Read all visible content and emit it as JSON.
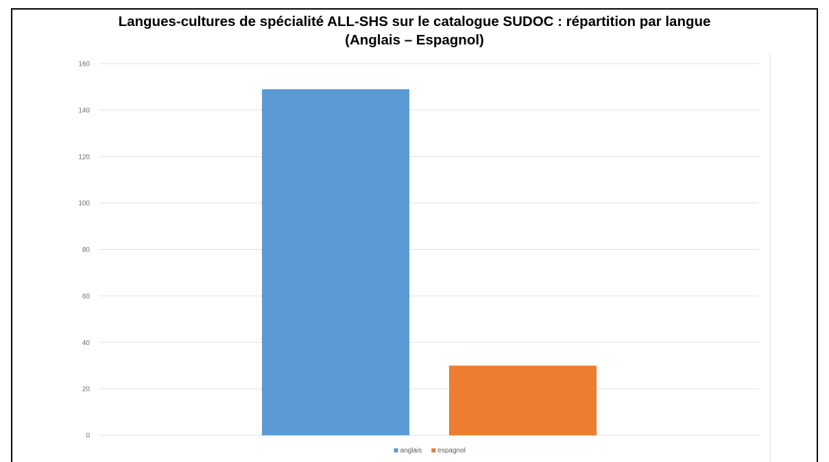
{
  "chart_data": {
    "type": "bar",
    "title_line1": "Langues-cultures de spécialité ALL-SHS sur le catalogue SUDOC : répartition par langue",
    "title_line2": "(Anglais – Espagnol)",
    "categories": [
      ""
    ],
    "series": [
      {
        "name": "anglais",
        "values": [
          149
        ],
        "color": "#5b9bd5"
      },
      {
        "name": "espagnol",
        "values": [
          30
        ],
        "color": "#ed7d31"
      }
    ],
    "ylim": [
      0,
      160
    ],
    "yticks": [
      "0",
      "20",
      "40",
      "60",
      "80",
      "100",
      "120",
      "140",
      "160"
    ],
    "grid": true,
    "legend_position": "bottom",
    "gridline_color": "#e0e0e0"
  }
}
